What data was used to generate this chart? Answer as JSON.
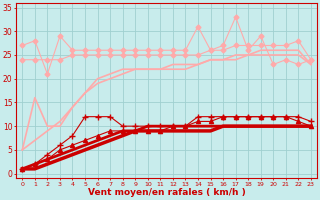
{
  "x": [
    0,
    1,
    2,
    3,
    4,
    5,
    6,
    7,
    8,
    9,
    10,
    11,
    12,
    13,
    14,
    15,
    16,
    17,
    18,
    19,
    20,
    21,
    22,
    23
  ],
  "background_color": "#c8ecec",
  "grid_color": "#a0d0d0",
  "xlabel": "Vent moyen/en rafales ( km/h )",
  "xlabel_color": "#cc0000",
  "tick_color": "#cc0000",
  "lines": [
    {
      "y": [
        null,
        28,
        21,
        29,
        null,
        null,
        null,
        null,
        null,
        null,
        null,
        null,
        null,
        null,
        31,
        null,
        27,
        33,
        null,
        29,
        null,
        24,
        null,
        null
      ],
      "y_clean": [
        27,
        28,
        21,
        29,
        26,
        26,
        26,
        26,
        26,
        26,
        26,
        26,
        26,
        26,
        31,
        26,
        27,
        33,
        26,
        29,
        23,
        24,
        23,
        24
      ],
      "color": "#ffaaaa",
      "marker": "D",
      "lw": 0.8,
      "ms": 2.5
    },
    {
      "y_clean": [
        24,
        24,
        24,
        24,
        25,
        25,
        25,
        25,
        25,
        25,
        25,
        25,
        25,
        25,
        25,
        26,
        26,
        27,
        27,
        27,
        27,
        27,
        28,
        24
      ],
      "color": "#ffaaaa",
      "marker": "D",
      "lw": 0.8,
      "ms": 2.5
    },
    {
      "y_clean": [
        5,
        16,
        10,
        10,
        14,
        17,
        20,
        21,
        22,
        22,
        22,
        22,
        22,
        22,
        23,
        24,
        24,
        25,
        25,
        26,
        26,
        26,
        26,
        23
      ],
      "color": "#ffaaaa",
      "marker": null,
      "lw": 1.2,
      "ms": 0
    },
    {
      "y_clean": [
        5,
        7,
        9,
        11,
        14,
        17,
        19,
        20,
        21,
        22,
        22,
        22,
        23,
        23,
        23,
        24,
        24,
        24,
        25,
        25,
        25,
        25,
        25,
        23
      ],
      "color": "#ffaaaa",
      "marker": null,
      "lw": 1.2,
      "ms": 0
    },
    {
      "y_clean": [
        1,
        2,
        4,
        6,
        8,
        12,
        12,
        12,
        10,
        10,
        10,
        10,
        10,
        10,
        12,
        12,
        12,
        12,
        12,
        12,
        12,
        12,
        12,
        11
      ],
      "color": "#cc0000",
      "marker": "+",
      "lw": 0.8,
      "ms": 4
    },
    {
      "y_clean": [
        1,
        2,
        3,
        5,
        6,
        7,
        8,
        9,
        9,
        9,
        9,
        9,
        10,
        10,
        11,
        11,
        12,
        12,
        12,
        12,
        12,
        12,
        11,
        10
      ],
      "color": "#cc0000",
      "marker": "^",
      "lw": 0.8,
      "ms": 3
    },
    {
      "y_clean": [
        1,
        2,
        3,
        4,
        5,
        6,
        7,
        8,
        9,
        9,
        10,
        10,
        10,
        10,
        10,
        10,
        10,
        10,
        10,
        10,
        10,
        10,
        10,
        10
      ],
      "color": "#cc0000",
      "marker": null,
      "lw": 2.0,
      "ms": 0
    },
    {
      "y_clean": [
        1,
        1,
        2,
        3,
        4,
        5,
        6,
        7,
        8,
        9,
        9,
        9,
        9,
        9,
        9,
        9,
        10,
        10,
        10,
        10,
        10,
        10,
        10,
        10
      ],
      "color": "#cc0000",
      "marker": null,
      "lw": 2.5,
      "ms": 0
    }
  ],
  "yticks": [
    0,
    5,
    10,
    15,
    20,
    25,
    30,
    35
  ],
  "ylim": [
    -1,
    36
  ],
  "xlim": [
    -0.5,
    23.5
  ],
  "xtick_labels": [
    "0",
    "1",
    "2",
    "3",
    "4",
    "5",
    "6",
    "7",
    "8",
    "9",
    "10",
    "11",
    "12",
    "13",
    "14",
    "15",
    "16",
    "17",
    "18",
    "19",
    "20",
    "21",
    "22",
    "23"
  ]
}
